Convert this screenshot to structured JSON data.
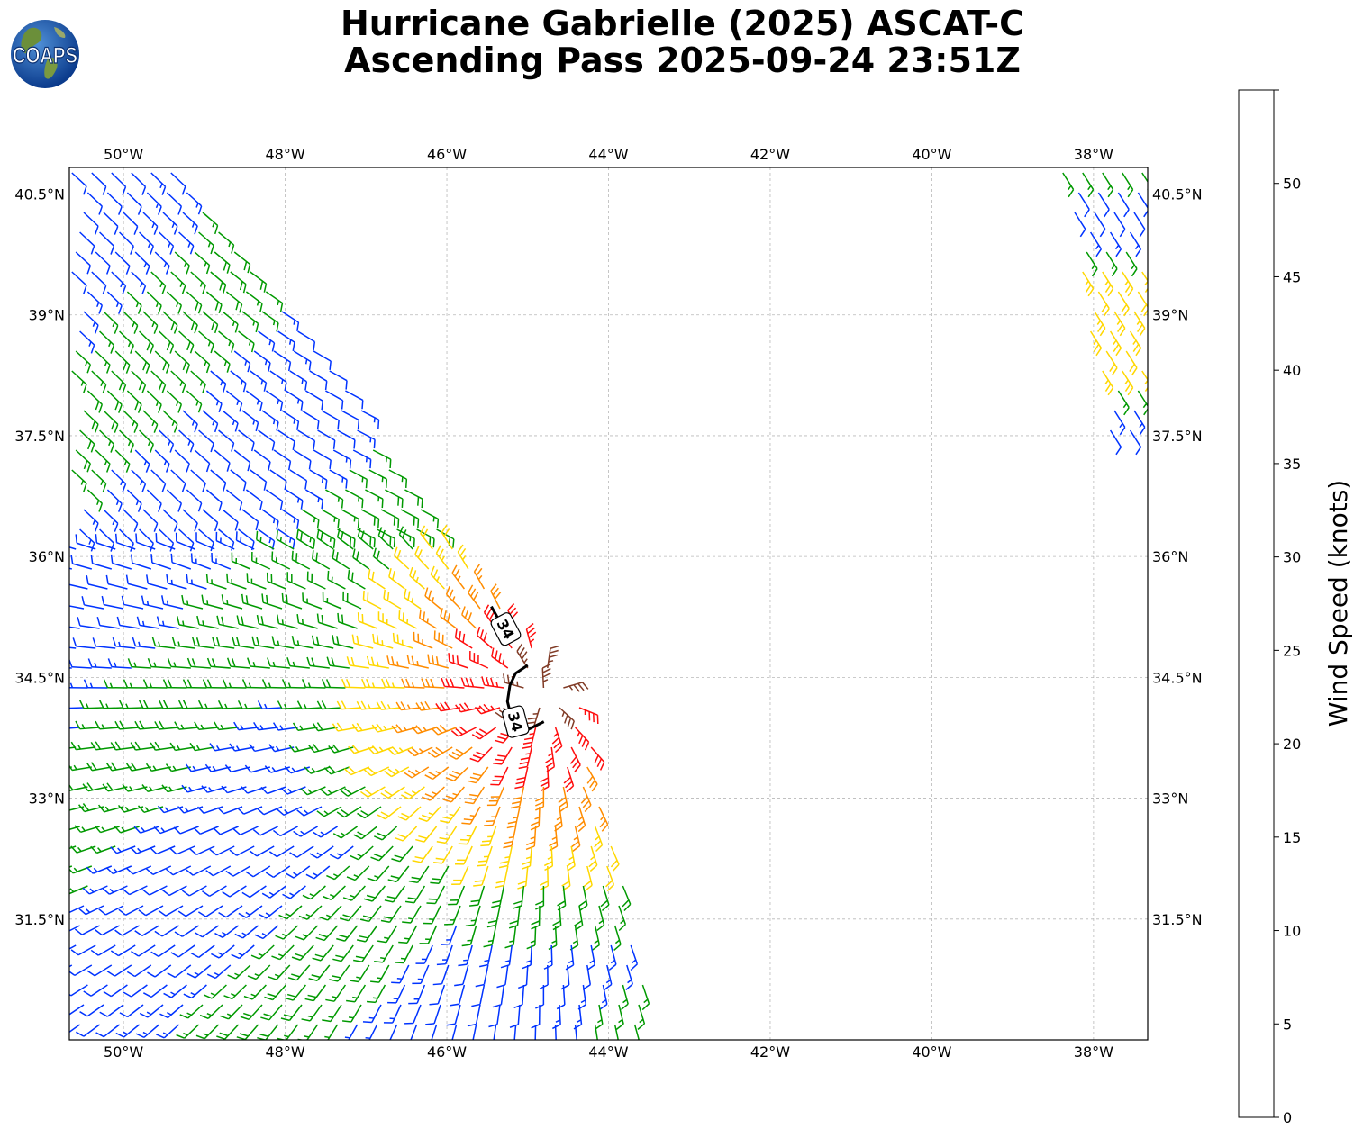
{
  "title": {
    "line1": "Hurricane Gabrielle (2025) ASCAT-C",
    "line2": "Ascending Pass 2025-09-24 23:51Z"
  },
  "logo": {
    "text": "COAPS",
    "icon": "globe-logo-icon"
  },
  "chart_data": {
    "type": "wind-barb map",
    "lon_range": [
      -50.67,
      -37.33
    ],
    "lat_range": [
      30.0,
      40.83
    ],
    "lon_ticks": [
      "50°W",
      "48°W",
      "46°W",
      "44°W",
      "42°W",
      "40°W",
      "38°W"
    ],
    "lon_tick_values": [
      -50,
      -48,
      -46,
      -44,
      -42,
      -40,
      -38
    ],
    "lat_ticks": [
      "40.5°N",
      "39°N",
      "37.5°N",
      "36°N",
      "34.5°N",
      "33°N",
      "31.5°N"
    ],
    "lat_tick_values": [
      40.5,
      39.0,
      37.5,
      36.0,
      34.5,
      33.0,
      31.5
    ],
    "grid": true,
    "storm_center": {
      "lon": -44.8,
      "lat": 34.3
    },
    "contour": {
      "level": "34",
      "label": "34",
      "color": "#000000",
      "segments": [
        [
          [
            -45.45,
            35.38
          ],
          [
            -45.35,
            35.2
          ],
          [
            -45.3,
            35.0
          ]
        ],
        [
          [
            -45.0,
            34.65
          ],
          [
            -45.15,
            34.55
          ],
          [
            -45.22,
            34.4
          ],
          [
            -45.25,
            34.2
          ],
          [
            -45.2,
            34.0
          ],
          [
            -45.0,
            33.85
          ],
          [
            -44.8,
            33.95
          ]
        ]
      ],
      "label_positions": [
        {
          "lon": -45.27,
          "lat": 35.1,
          "angle": 62
        },
        {
          "lon": -45.15,
          "lat": 33.95,
          "angle": 75
        }
      ]
    },
    "swaths": [
      {
        "name": "main swath",
        "corners": [
          [
            -49.3,
            40.83
          ],
          [
            -44.3,
            34.1
          ],
          [
            -43.4,
            30.0
          ],
          [
            -50.67,
            30.0
          ],
          [
            -50.67,
            40.83
          ]
        ]
      },
      {
        "name": "east swath",
        "corners": [
          [
            -38.4,
            40.83
          ],
          [
            -37.33,
            40.83
          ],
          [
            -37.33,
            37.4
          ],
          [
            -37.8,
            37.4
          ]
        ]
      }
    ],
    "colorbar": {
      "label": "Wind Speed (knots)",
      "ticks": [
        "0",
        "5",
        "10",
        "15",
        "20",
        "25",
        "30",
        "35",
        "40",
        "45",
        "50"
      ],
      "bounds": [
        0,
        5,
        10,
        15,
        20,
        25,
        30,
        35,
        40,
        45,
        50,
        55
      ],
      "colors": [
        "#595959",
        "#00bfff",
        "#0033ff",
        "#009900",
        "#ffd700",
        "#ff8c00",
        "#ff0d0d",
        "#803b26",
        "#ff00ff",
        "#8800bb",
        "#2b0060"
      ]
    }
  }
}
